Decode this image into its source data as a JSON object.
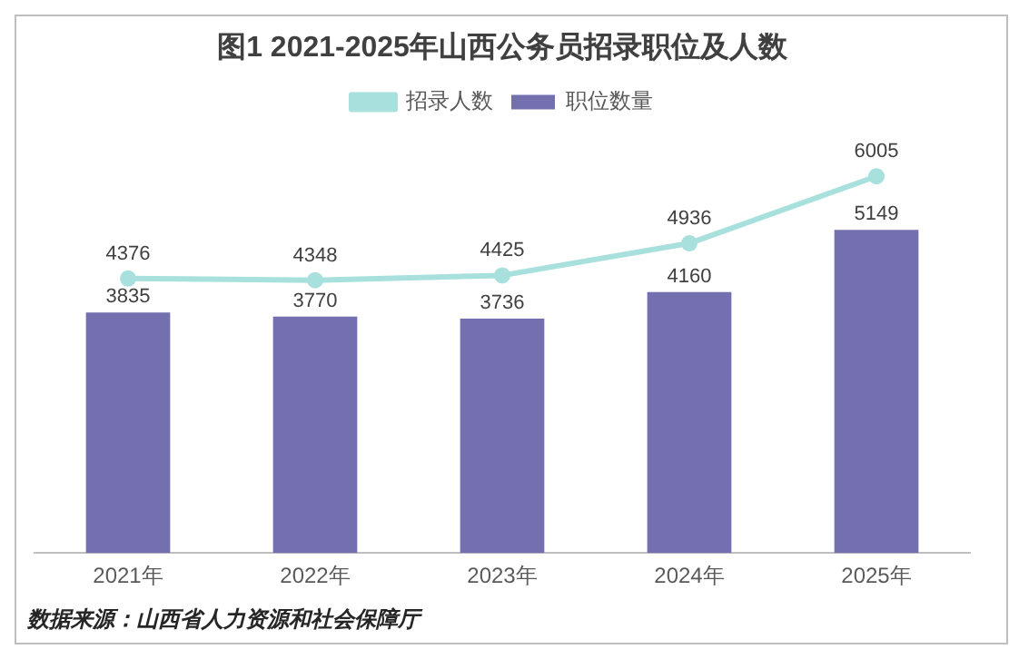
{
  "chart_data": {
    "type": "bar",
    "title": "图1 2021-2025年山西公务员招录职位及人数",
    "categories": [
      "2021年",
      "2022年",
      "2023年",
      "2024年",
      "2025年"
    ],
    "series": [
      {
        "name": "职位数量",
        "type": "bar",
        "color": "#7470b0",
        "values": [
          3835,
          3770,
          3736,
          4160,
          5149
        ]
      },
      {
        "name": "招录人数",
        "type": "line",
        "color": "#a8e0de",
        "values": [
          4376,
          4348,
          4425,
          4936,
          6005
        ]
      }
    ],
    "data_labels": true,
    "legend": "top",
    "grid": false,
    "marker": "circle",
    "line_style": "solid",
    "annotations": [
      "数据来源：山西省人力资源和社会保障厅"
    ]
  }
}
